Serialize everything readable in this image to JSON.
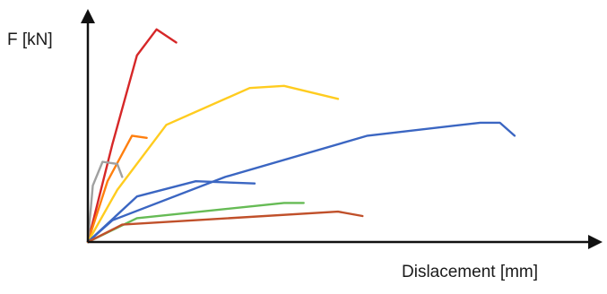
{
  "chart_data": {
    "type": "line",
    "title": "",
    "xlabel": "Dislacement [mm]",
    "ylabel": "F [kN]",
    "xlim": [
      0,
      100
    ],
    "ylim": [
      0,
      100
    ],
    "grid": false,
    "legend": "none",
    "axis_color": "#111111",
    "series": [
      {
        "color": "#d62728",
        "x": [
          0,
          5,
          10,
          14,
          18
        ],
        "y": [
          0,
          45,
          86,
          98,
          92
        ]
      },
      {
        "color": "#ff7f0e",
        "x": [
          0,
          4,
          9,
          12
        ],
        "y": [
          0,
          28,
          49,
          48
        ]
      },
      {
        "color": "#a0a0a0",
        "x": [
          0,
          1,
          3,
          6,
          7
        ],
        "y": [
          0,
          26,
          37,
          36,
          30
        ]
      },
      {
        "color": "#ffcc1f",
        "x": [
          0,
          6,
          16,
          33,
          40,
          51
        ],
        "y": [
          0,
          24,
          54,
          71,
          72,
          66
        ]
      },
      {
        "color": "#3b66c2",
        "x": [
          0,
          10,
          22,
          34
        ],
        "y": [
          0,
          21,
          28,
          27
        ]
      },
      {
        "color": "#3b66c2",
        "x": [
          0,
          5,
          28,
          57,
          80,
          84,
          87
        ],
        "y": [
          0,
          10,
          30,
          49,
          55,
          55,
          49
        ]
      },
      {
        "color": "#66bb55",
        "x": [
          0,
          10,
          40,
          44
        ],
        "y": [
          0,
          11,
          18,
          18
        ]
      },
      {
        "color": "#c0502a",
        "x": [
          0,
          7,
          51,
          56
        ],
        "y": [
          0,
          8,
          14,
          12
        ]
      }
    ]
  }
}
